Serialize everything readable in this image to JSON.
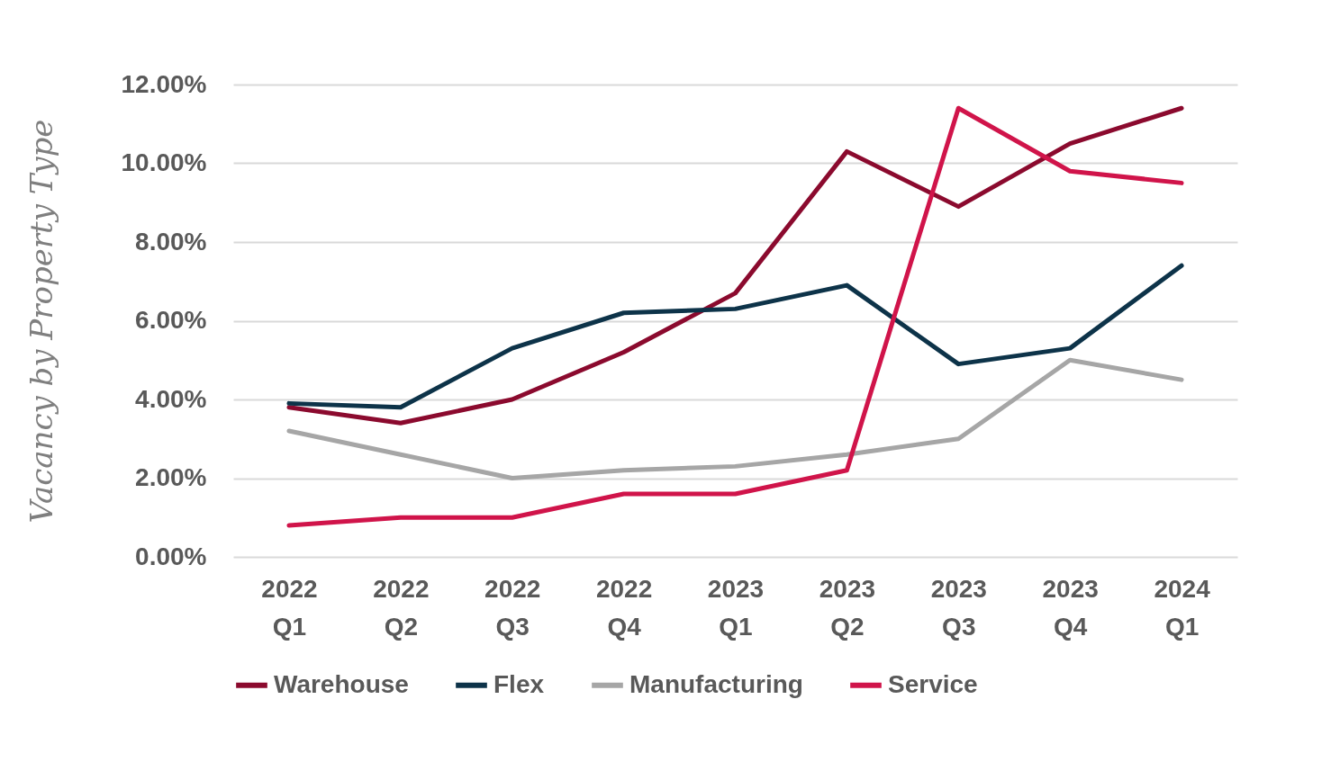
{
  "chart_data": {
    "type": "line",
    "ylabel": "Vacancy by Property Type",
    "categories": [
      "2022 Q1",
      "2022 Q2",
      "2022 Q3",
      "2022 Q4",
      "2023 Q1",
      "2023 Q2",
      "2023 Q3",
      "2023 Q4",
      "2024 Q1"
    ],
    "series": [
      {
        "name": "Warehouse",
        "color": "#8b0a2e",
        "values": [
          3.8,
          3.4,
          4.0,
          5.2,
          6.7,
          10.3,
          8.9,
          10.5,
          11.4
        ]
      },
      {
        "name": "Flex",
        "color": "#0d3349",
        "values": [
          3.9,
          3.8,
          5.3,
          6.2,
          6.3,
          6.9,
          4.9,
          5.3,
          7.4
        ]
      },
      {
        "name": "Manufacturing",
        "color": "#a6a6a6",
        "values": [
          3.2,
          2.6,
          2.0,
          2.2,
          2.3,
          2.6,
          3.0,
          5.0,
          4.5
        ]
      },
      {
        "name": "Service",
        "color": "#d0144a",
        "values": [
          0.8,
          1.0,
          1.0,
          1.6,
          1.6,
          2.2,
          11.4,
          9.8,
          9.5
        ]
      }
    ],
    "ylim": [
      0,
      12
    ],
    "yticks": [
      {
        "value": 0,
        "label": "0.00%"
      },
      {
        "value": 2,
        "label": "2.00%"
      },
      {
        "value": 4,
        "label": "4.00%"
      },
      {
        "value": 6,
        "label": "6.00%"
      },
      {
        "value": 8,
        "label": "8.00%"
      },
      {
        "value": 10,
        "label": "10.00%"
      },
      {
        "value": 12,
        "label": "12.00%"
      }
    ],
    "grid": "y",
    "legend": "bottom",
    "marker": "none",
    "line_style": "solid"
  }
}
